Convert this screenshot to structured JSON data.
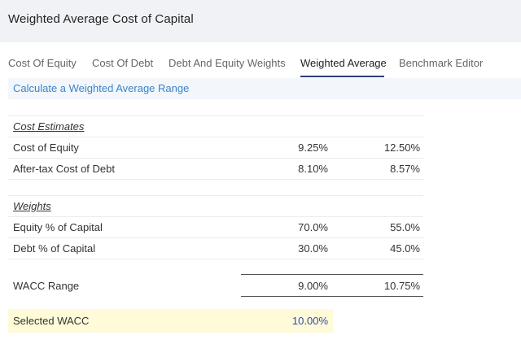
{
  "header": {
    "title": "Weighted Average Cost of Capital"
  },
  "tabs": [
    {
      "label": "Cost Of Equity"
    },
    {
      "label": "Cost Of Debt"
    },
    {
      "label": "Debt And Equity Weights"
    },
    {
      "label": "Weighted Average",
      "active": true
    },
    {
      "label": "Benchmark Editor"
    }
  ],
  "calc_link": "Calculate a Weighted Average Range",
  "cost_estimates": {
    "heading": "Cost Estimates",
    "rows": [
      {
        "label": "Cost of Equity",
        "low": "9.25%",
        "high": "12.50%"
      },
      {
        "label": "After-tax Cost of Debt",
        "low": "8.10%",
        "high": "8.57%"
      }
    ]
  },
  "weights": {
    "heading": "Weights",
    "rows": [
      {
        "label": "Equity % of Capital",
        "low": "70.0%",
        "high": "55.0%"
      },
      {
        "label": "Debt % of Capital",
        "low": "30.0%",
        "high": "45.0%"
      }
    ]
  },
  "wacc_range": {
    "label": "WACC Range",
    "low": "9.00%",
    "high": "10.75%"
  },
  "selected_wacc": {
    "label": "Selected WACC",
    "value": "10.00%"
  },
  "colors": {
    "link": "#3a84c9",
    "selected_bg": "#fffbd8",
    "selected_value": "#2f49b5",
    "tab_underline": "#2d3e7a"
  }
}
